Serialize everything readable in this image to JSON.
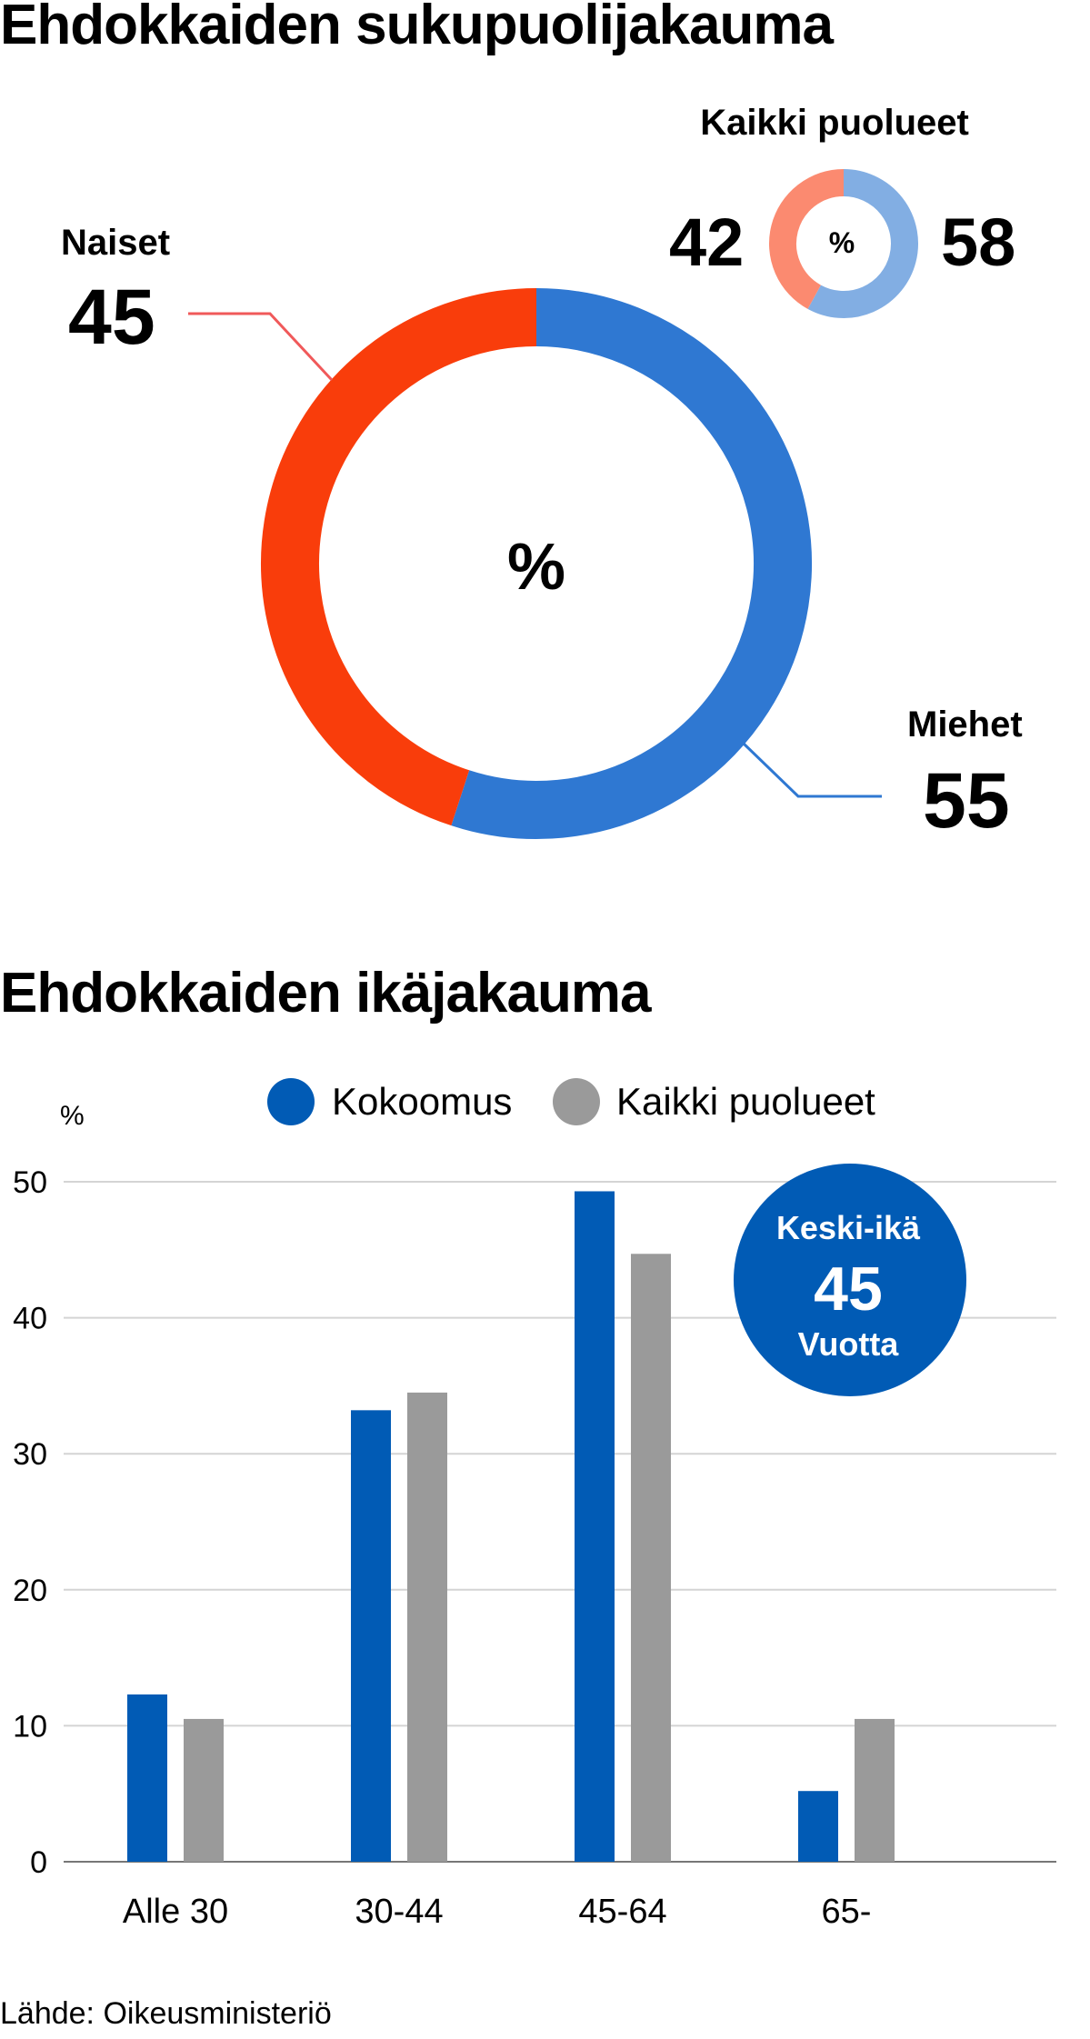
{
  "gender_section": {
    "title": "Ehdokkaiden sukupuolijakauma",
    "center_symbol": "%",
    "small_title": "Kaikki puolueet",
    "small_center_symbol": "%"
  },
  "age_section": {
    "title": "Ehdokkaiden ikäjakauma",
    "badge": {
      "label": "Keski-ikä",
      "value": "45",
      "unit": "Vuotta"
    }
  },
  "source": "Lähde: Oikeusministeriö",
  "chart_data": [
    {
      "type": "pie",
      "title": "Ehdokkaiden sukupuolijakauma",
      "labels": [
        "Naiset",
        "Miehet"
      ],
      "values": [
        45,
        55
      ],
      "colors": [
        "#f93d0b",
        "#2f78d2"
      ],
      "unit": "%"
    },
    {
      "type": "pie",
      "title": "Kaikki puolueet",
      "labels": [
        "Naiset",
        "Miehet"
      ],
      "values": [
        42,
        58
      ],
      "colors": [
        "#fb8a70",
        "#82aee3"
      ],
      "unit": "%"
    },
    {
      "type": "bar",
      "title": "Ehdokkaiden ikäjakauma",
      "ylabel": "%",
      "ylim": [
        0,
        50
      ],
      "yticks": [
        0,
        10,
        20,
        30,
        40,
        50
      ],
      "categories": [
        "Alle 30",
        "30-44",
        "45-64",
        "65-"
      ],
      "series": [
        {
          "name": "Kokoomus",
          "color": "#015bb5",
          "values": [
            12.3,
            33.2,
            49.3,
            5.2
          ]
        },
        {
          "name": "Kaikki puolueet",
          "color": "#9a9a9a",
          "values": [
            10.5,
            34.5,
            44.7,
            10.5
          ]
        }
      ],
      "legend_position": "top"
    }
  ]
}
